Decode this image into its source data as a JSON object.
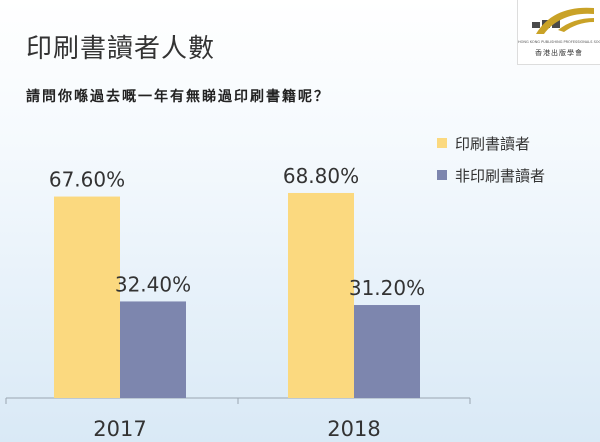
{
  "header": {
    "title": "印刷書讀者人數",
    "question": "請問你喺過去嘅一年有無睇過印刷書籍呢？"
  },
  "logo": {
    "name_en": "HONG KONG PUBLISHING PROFESSIONALS SOCIETY",
    "name_zh": "香港出版學會",
    "colors": {
      "gold": "#c9a227",
      "grey": "#4a4a4a"
    }
  },
  "chart_data": {
    "type": "bar",
    "title": "",
    "categories": [
      "2017",
      "2018"
    ],
    "series": [
      {
        "name": "印刷書讀者",
        "values": [
          67.6,
          68.8
        ],
        "labels": [
          "67.60%",
          "68.80%"
        ],
        "color": "#fbd97f"
      },
      {
        "name": "非印刷書讀者",
        "values": [
          32.4,
          31.2
        ],
        "labels": [
          "32.40%",
          "31.20%"
        ],
        "color": "#7d86ae"
      }
    ],
    "ylim": [
      0,
      100
    ],
    "grid": false,
    "legend_position": "right"
  }
}
